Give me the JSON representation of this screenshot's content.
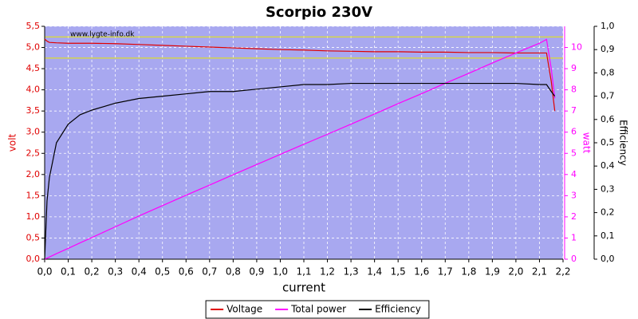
{
  "chart_data": {
    "type": "line",
    "title": "Scorpio 230V",
    "annotation": "www.lygte-info.dk",
    "xlabel": "current",
    "ylabel": "volt",
    "y2label": "watt",
    "y3label": "Efficiency",
    "xlim": [
      0,
      2.2
    ],
    "xticks": [
      {
        "value": 0,
        "label": "0,0"
      },
      {
        "value": 0.1,
        "label": "0,1"
      },
      {
        "value": 0.2,
        "label": "0,2"
      },
      {
        "value": 0.3,
        "label": "0,3"
      },
      {
        "value": 0.4,
        "label": "0,4"
      },
      {
        "value": 0.5,
        "label": "0,5"
      },
      {
        "value": 0.6,
        "label": "0,6"
      },
      {
        "value": 0.7,
        "label": "0,7"
      },
      {
        "value": 0.8,
        "label": "0,8"
      },
      {
        "value": 0.9,
        "label": "0,9"
      },
      {
        "value": 1.0,
        "label": "1,0"
      },
      {
        "value": 1.1,
        "label": "1,1"
      },
      {
        "value": 1.2,
        "label": "1,2"
      },
      {
        "value": 1.3,
        "label": "1,3"
      },
      {
        "value": 1.4,
        "label": "1,4"
      },
      {
        "value": 1.5,
        "label": "1,5"
      },
      {
        "value": 1.6,
        "label": "1,6"
      },
      {
        "value": 1.7,
        "label": "1,7"
      },
      {
        "value": 1.8,
        "label": "1,8"
      },
      {
        "value": 1.9,
        "label": "1,9"
      },
      {
        "value": 2.0,
        "label": "2,0"
      },
      {
        "value": 2.1,
        "label": "2,1"
      },
      {
        "value": 2.2,
        "label": "2,2"
      }
    ],
    "ylim": [
      0,
      5.5
    ],
    "yticks": [
      {
        "value": 0,
        "label": "0,0"
      },
      {
        "value": 0.5,
        "label": "0,5"
      },
      {
        "value": 1.0,
        "label": "1,0"
      },
      {
        "value": 1.5,
        "label": "1,5"
      },
      {
        "value": 2.0,
        "label": "2,0"
      },
      {
        "value": 2.5,
        "label": "2,5"
      },
      {
        "value": 3.0,
        "label": "3,0"
      },
      {
        "value": 3.5,
        "label": "3,5"
      },
      {
        "value": 4.0,
        "label": "4,0"
      },
      {
        "value": 4.5,
        "label": "4,5"
      },
      {
        "value": 5.0,
        "label": "5,0"
      },
      {
        "value": 5.5,
        "label": "5,5"
      }
    ],
    "y2lim": [
      0,
      11
    ],
    "y2ticks": [
      0,
      1,
      2,
      3,
      4,
      5,
      6,
      7,
      8,
      9,
      10
    ],
    "y3lim": [
      0,
      1
    ],
    "y3ticks": [
      {
        "value": 0,
        "label": "0,0"
      },
      {
        "value": 0.1,
        "label": "0,1"
      },
      {
        "value": 0.2,
        "label": "0,2"
      },
      {
        "value": 0.3,
        "label": "0,3"
      },
      {
        "value": 0.4,
        "label": "0,4"
      },
      {
        "value": 0.5,
        "label": "0,5"
      },
      {
        "value": 0.6,
        "label": "0,6"
      },
      {
        "value": 0.7,
        "label": "0,7"
      },
      {
        "value": 0.8,
        "label": "0,8"
      },
      {
        "value": 0.9,
        "label": "0,9"
      },
      {
        "value": 1.0,
        "label": "1,0"
      }
    ],
    "grid": true,
    "reference_lines": {
      "color": "#e8e800",
      "values": [
        5.25,
        4.75
      ]
    },
    "x": [
      0,
      0.01,
      0.02,
      0.05,
      0.1,
      0.15,
      0.2,
      0.3,
      0.4,
      0.5,
      0.6,
      0.7,
      0.8,
      0.9,
      1.0,
      1.1,
      1.2,
      1.3,
      1.4,
      1.5,
      1.6,
      1.7,
      1.8,
      1.9,
      2.0,
      2.1,
      2.13,
      2.15,
      2.165
    ],
    "series": [
      {
        "name": "Voltage",
        "color": "#e00000",
        "values": [
          5.2,
          5.15,
          5.12,
          5.11,
          5.1,
          5.1,
          5.1,
          5.09,
          5.07,
          5.05,
          5.03,
          5.01,
          4.99,
          4.97,
          4.95,
          4.94,
          4.92,
          4.91,
          4.9,
          4.9,
          4.89,
          4.89,
          4.88,
          4.88,
          4.87,
          4.87,
          4.87,
          4.2,
          3.5
        ]
      },
      {
        "name": "Total power",
        "color": "#ff00ff",
        "axis": "y2",
        "values": [
          0,
          0.05,
          0.1,
          0.26,
          0.51,
          0.77,
          1.02,
          1.53,
          2.04,
          2.53,
          3.02,
          3.5,
          3.99,
          4.47,
          4.95,
          5.43,
          5.9,
          6.38,
          6.86,
          7.35,
          7.82,
          8.31,
          8.78,
          9.27,
          9.74,
          10.2,
          10.38,
          9.0,
          7.6
        ]
      },
      {
        "name": "Efficiency",
        "color": "#000000",
        "axis": "y3",
        "values": [
          0,
          0.25,
          0.35,
          0.5,
          0.58,
          0.62,
          0.64,
          0.67,
          0.69,
          0.7,
          0.71,
          0.72,
          0.72,
          0.73,
          0.74,
          0.75,
          0.75,
          0.755,
          0.755,
          0.755,
          0.755,
          0.755,
          0.755,
          0.755,
          0.755,
          0.75,
          0.75,
          0.72,
          0.7
        ]
      }
    ]
  }
}
